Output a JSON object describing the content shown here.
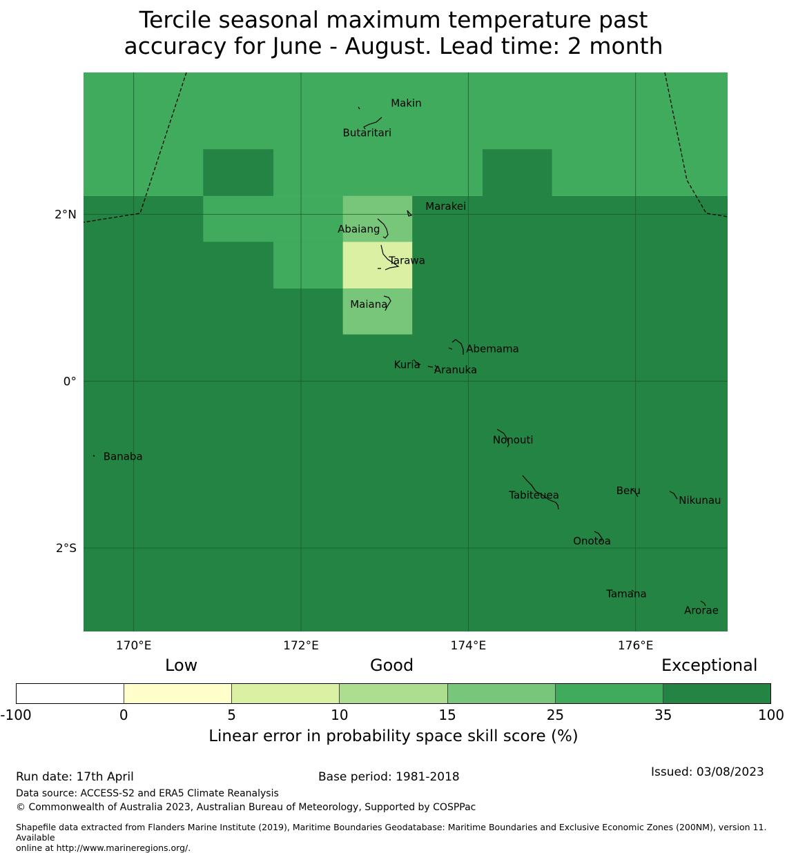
{
  "title_line1": "Tercile seasonal maximum temperature past",
  "title_line2": "accuracy for June - August. Lead time: 2 month",
  "map": {
    "lon_range": [
      169.4,
      177.1
    ],
    "lat_range": [
      -3.0,
      3.7
    ],
    "lat_ticks": [
      {
        "value": 2,
        "label": "2°N"
      },
      {
        "value": 0,
        "label": "0°"
      },
      {
        "value": -2,
        "label": "2°S"
      }
    ],
    "lon_ticks": [
      {
        "value": 170,
        "label": "170°E"
      },
      {
        "value": 172,
        "label": "172°E"
      },
      {
        "value": 174,
        "label": "174°E"
      },
      {
        "value": 176,
        "label": "176°E"
      }
    ],
    "colors": {
      "c1": "#daf0a2",
      "c3": "#78c679",
      "c4": "#41ab5d",
      "c5": "#238443"
    },
    "cells": [
      {
        "lon0": 169.4,
        "lon1": 177.1,
        "lat0": 2.22,
        "lat1": 3.7,
        "color": "c4"
      },
      {
        "lon0": 169.4,
        "lon1": 177.1,
        "lat0": -3.0,
        "lat1": 2.22,
        "color": "c5"
      },
      {
        "lon0": 170.83,
        "lon1": 171.67,
        "lat0": 2.22,
        "lat1": 2.78,
        "color": "c5"
      },
      {
        "lon0": 174.17,
        "lon1": 175.0,
        "lat0": 2.22,
        "lat1": 2.78,
        "color": "c5"
      },
      {
        "lon0": 170.83,
        "lon1": 172.5,
        "lat0": 1.67,
        "lat1": 2.22,
        "color": "c4"
      },
      {
        "lon0": 171.67,
        "lon1": 172.5,
        "lat0": 1.11,
        "lat1": 1.67,
        "color": "c4"
      },
      {
        "lon0": 172.5,
        "lon1": 173.33,
        "lat0": 1.67,
        "lat1": 2.22,
        "color": "c3"
      },
      {
        "lon0": 172.5,
        "lon1": 173.33,
        "lat0": 1.11,
        "lat1": 1.67,
        "color": "c1"
      },
      {
        "lon0": 172.5,
        "lon1": 173.33,
        "lat0": 0.56,
        "lat1": 1.11,
        "color": "c3"
      }
    ],
    "islands": [
      {
        "name": "Makin",
        "lon": 173.0,
        "lat": 3.33
      },
      {
        "name": "Butaritari",
        "lon": 172.78,
        "lat": 3.0
      },
      {
        "name": "Marakei",
        "lon": 173.38,
        "lat": 2.02
      },
      {
        "name": "Abaiang",
        "lon": 172.95,
        "lat": 1.83
      },
      {
        "name": "Tarawa",
        "lon": 173.0,
        "lat": 1.42
      },
      {
        "name": "Maiana",
        "lon": 173.0,
        "lat": 0.93
      },
      {
        "name": "Abemama",
        "lon": 173.85,
        "lat": 0.42
      },
      {
        "name": "Kuria",
        "lon": 173.4,
        "lat": 0.22
      },
      {
        "name": "Aranuka",
        "lon": 173.6,
        "lat": 0.15
      },
      {
        "name": "Nonouti",
        "lon": 174.45,
        "lat": -0.67
      },
      {
        "name": "Banaba",
        "lon": 169.53,
        "lat": -0.87
      },
      {
        "name": "Tabiteuea",
        "lon": 174.8,
        "lat": -1.35
      },
      {
        "name": "Beru",
        "lon": 176.0,
        "lat": -1.33
      },
      {
        "name": "Nikunau",
        "lon": 176.45,
        "lat": -1.37
      },
      {
        "name": "Onotoa",
        "lon": 175.55,
        "lat": -1.85
      },
      {
        "name": "Tamana",
        "lon": 175.98,
        "lat": -2.5
      },
      {
        "name": "Arorae",
        "lon": 176.82,
        "lat": -2.65
      }
    ]
  },
  "colorbar": {
    "words": {
      "low": "Low",
      "good": "Good",
      "exceptional": "Exceptional"
    },
    "ticks": [
      "-100",
      "0",
      "5",
      "10",
      "15",
      "25",
      "35",
      "100"
    ],
    "colors": [
      "#ffffff",
      "#ffffcc",
      "#daf0a2",
      "#addd8e",
      "#78c679",
      "#41ab5d",
      "#238443"
    ],
    "title": "Linear error in probability space skill score (%)"
  },
  "footer": {
    "run_date": "Run date: 17th April",
    "base_period": "Base period: 1981-2018",
    "issued": "Issued: 03/08/2023",
    "data_source": "Data source: ACCESS-S2 and ERA5 Climate Reanalysis",
    "copyright": "© Commonwealth of Australia 2023, Australian Bureau of Meteorology, Supported by COSPPac",
    "shapefile_line1": "Shapefile data extracted from Flanders Marine Institute (2019), Maritime Boundaries Geodatabase: Maritime Boundaries and Exclusive Economic Zones (200NM), version 11. Available",
    "shapefile_line2": "online at http://www.marineregions.org/."
  }
}
